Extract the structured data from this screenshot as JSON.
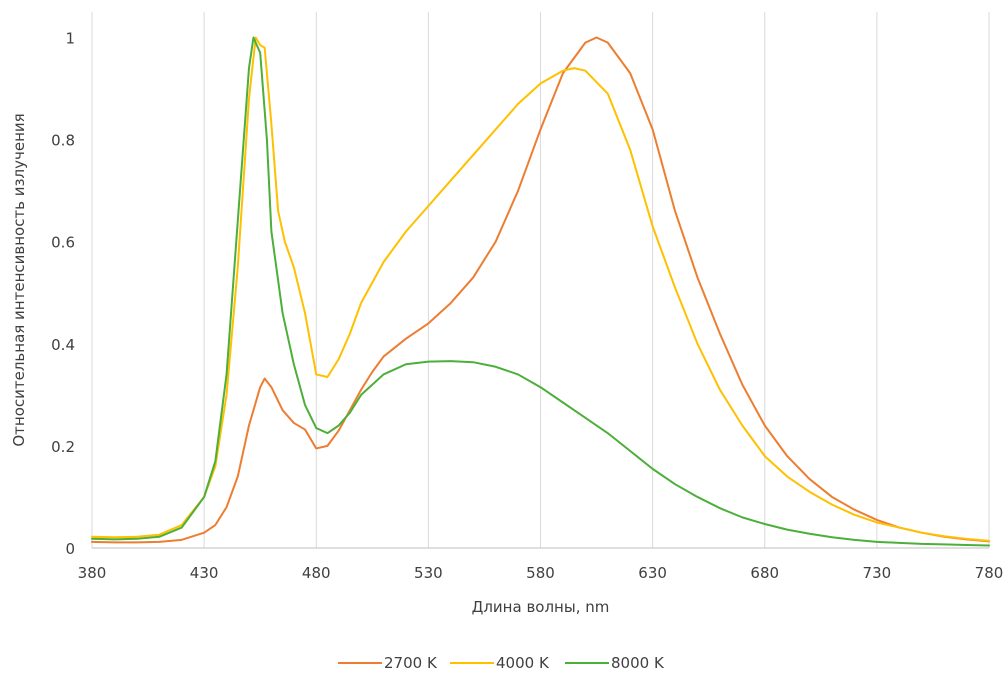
{
  "chart_data": {
    "type": "line",
    "xlabel": "Длина волны, nm",
    "ylabel": "Относительная интенсивность излучения",
    "xlim": [
      380,
      780
    ],
    "ylim": [
      0,
      1.05
    ],
    "xticks": [
      380,
      430,
      480,
      530,
      580,
      630,
      680,
      730,
      780
    ],
    "yticks": [
      0,
      0.2,
      0.4,
      0.6,
      0.8,
      1
    ],
    "ytick_labels": [
      "0",
      "0.2",
      "0.4",
      "0.6",
      "0.8",
      "1"
    ],
    "grid": "vertical",
    "legend": "bottom",
    "series": [
      {
        "name": "2700 K",
        "color": "#ED7D31",
        "points": [
          [
            380,
            0.012
          ],
          [
            390,
            0.011
          ],
          [
            400,
            0.011
          ],
          [
            410,
            0.012
          ],
          [
            420,
            0.016
          ],
          [
            430,
            0.03
          ],
          [
            435,
            0.045
          ],
          [
            440,
            0.08
          ],
          [
            445,
            0.14
          ],
          [
            450,
            0.24
          ],
          [
            455,
            0.315
          ],
          [
            457,
            0.332
          ],
          [
            460,
            0.315
          ],
          [
            465,
            0.27
          ],
          [
            470,
            0.245
          ],
          [
            475,
            0.232
          ],
          [
            480,
            0.195
          ],
          [
            485,
            0.2
          ],
          [
            490,
            0.23
          ],
          [
            495,
            0.27
          ],
          [
            500,
            0.31
          ],
          [
            505,
            0.345
          ],
          [
            510,
            0.375
          ],
          [
            520,
            0.41
          ],
          [
            530,
            0.44
          ],
          [
            540,
            0.48
          ],
          [
            550,
            0.53
          ],
          [
            560,
            0.6
          ],
          [
            570,
            0.7
          ],
          [
            580,
            0.82
          ],
          [
            590,
            0.93
          ],
          [
            600,
            0.99
          ],
          [
            605,
            1.0
          ],
          [
            610,
            0.99
          ],
          [
            620,
            0.93
          ],
          [
            630,
            0.82
          ],
          [
            640,
            0.66
          ],
          [
            650,
            0.53
          ],
          [
            660,
            0.42
          ],
          [
            670,
            0.32
          ],
          [
            680,
            0.24
          ],
          [
            690,
            0.18
          ],
          [
            700,
            0.135
          ],
          [
            710,
            0.1
          ],
          [
            720,
            0.075
          ],
          [
            730,
            0.055
          ],
          [
            740,
            0.04
          ],
          [
            750,
            0.03
          ],
          [
            760,
            0.022
          ],
          [
            770,
            0.017
          ],
          [
            780,
            0.013
          ]
        ]
      },
      {
        "name": "4000 K",
        "color": "#FFC000",
        "points": [
          [
            380,
            0.022
          ],
          [
            390,
            0.021
          ],
          [
            400,
            0.022
          ],
          [
            410,
            0.026
          ],
          [
            420,
            0.045
          ],
          [
            430,
            0.1
          ],
          [
            435,
            0.16
          ],
          [
            440,
            0.3
          ],
          [
            445,
            0.55
          ],
          [
            450,
            0.88
          ],
          [
            453,
            1.0
          ],
          [
            455,
            0.985
          ],
          [
            457,
            0.98
          ],
          [
            460,
            0.83
          ],
          [
            463,
            0.66
          ],
          [
            466,
            0.6
          ],
          [
            470,
            0.55
          ],
          [
            475,
            0.46
          ],
          [
            480,
            0.34
          ],
          [
            485,
            0.335
          ],
          [
            490,
            0.37
          ],
          [
            495,
            0.42
          ],
          [
            500,
            0.48
          ],
          [
            510,
            0.56
          ],
          [
            520,
            0.62
          ],
          [
            530,
            0.67
          ],
          [
            540,
            0.72
          ],
          [
            550,
            0.77
          ],
          [
            560,
            0.82
          ],
          [
            570,
            0.87
          ],
          [
            580,
            0.91
          ],
          [
            590,
            0.935
          ],
          [
            595,
            0.94
          ],
          [
            600,
            0.935
          ],
          [
            610,
            0.89
          ],
          [
            620,
            0.78
          ],
          [
            630,
            0.63
          ],
          [
            640,
            0.51
          ],
          [
            650,
            0.4
          ],
          [
            660,
            0.31
          ],
          [
            670,
            0.24
          ],
          [
            680,
            0.18
          ],
          [
            690,
            0.14
          ],
          [
            700,
            0.11
          ],
          [
            710,
            0.085
          ],
          [
            720,
            0.065
          ],
          [
            730,
            0.05
          ],
          [
            740,
            0.04
          ],
          [
            750,
            0.03
          ],
          [
            760,
            0.023
          ],
          [
            770,
            0.018
          ],
          [
            780,
            0.014
          ]
        ]
      },
      {
        "name": "8000 K",
        "color": "#4CAF3A",
        "points": [
          [
            380,
            0.018
          ],
          [
            390,
            0.017
          ],
          [
            400,
            0.018
          ],
          [
            410,
            0.022
          ],
          [
            420,
            0.04
          ],
          [
            430,
            0.1
          ],
          [
            435,
            0.17
          ],
          [
            440,
            0.34
          ],
          [
            445,
            0.64
          ],
          [
            450,
            0.94
          ],
          [
            452,
            1.0
          ],
          [
            455,
            0.97
          ],
          [
            458,
            0.8
          ],
          [
            460,
            0.62
          ],
          [
            465,
            0.46
          ],
          [
            470,
            0.36
          ],
          [
            475,
            0.28
          ],
          [
            480,
            0.235
          ],
          [
            485,
            0.225
          ],
          [
            490,
            0.24
          ],
          [
            495,
            0.265
          ],
          [
            500,
            0.3
          ],
          [
            510,
            0.34
          ],
          [
            520,
            0.36
          ],
          [
            530,
            0.365
          ],
          [
            540,
            0.366
          ],
          [
            550,
            0.364
          ],
          [
            560,
            0.355
          ],
          [
            570,
            0.34
          ],
          [
            580,
            0.315
          ],
          [
            590,
            0.285
          ],
          [
            600,
            0.255
          ],
          [
            610,
            0.225
          ],
          [
            620,
            0.19
          ],
          [
            630,
            0.155
          ],
          [
            640,
            0.125
          ],
          [
            650,
            0.1
          ],
          [
            660,
            0.078
          ],
          [
            670,
            0.06
          ],
          [
            680,
            0.047
          ],
          [
            690,
            0.036
          ],
          [
            700,
            0.028
          ],
          [
            710,
            0.021
          ],
          [
            720,
            0.016
          ],
          [
            730,
            0.012
          ],
          [
            740,
            0.01
          ],
          [
            750,
            0.008
          ],
          [
            760,
            0.007
          ],
          [
            770,
            0.006
          ],
          [
            780,
            0.005
          ]
        ]
      }
    ]
  }
}
